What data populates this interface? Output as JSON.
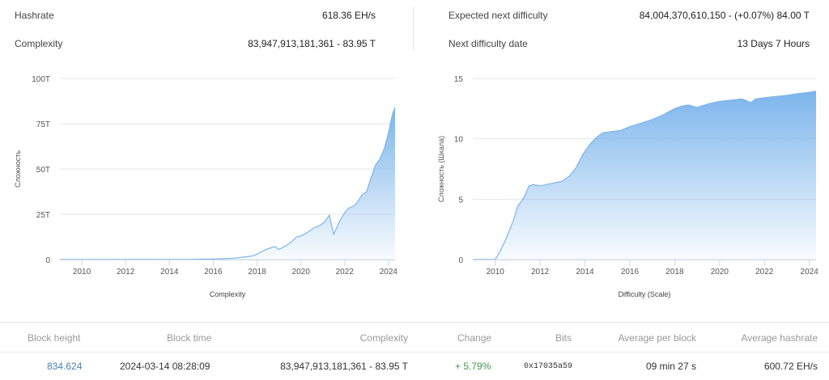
{
  "stats": {
    "hashrate": {
      "label": "Hashrate",
      "value": "618.36 EH/s"
    },
    "complexity": {
      "label": "Complexity",
      "value": "83,947,913,181,361 - 83.95 T"
    },
    "expected_next": {
      "label": "Expected next difficulty",
      "value": "84,004,370,610,150 - (+0.07%) 84.00 T"
    },
    "next_date": {
      "label": "Next difficulty date",
      "value": "13 Days 7 Hours"
    }
  },
  "colors": {
    "area_top": "#7cb5ec",
    "area_bottom": "#ffffff",
    "grid": "#e6e6e6",
    "link": "#4a7fb0",
    "positive": "#3c9a46"
  },
  "chart_data": [
    {
      "type": "area",
      "title": "",
      "xlabel": "Complexity",
      "ylabel": "Сложность",
      "xlim": [
        2009,
        2024.3
      ],
      "ylim": [
        0,
        100
      ],
      "x_ticks": [
        "2010",
        "2012",
        "2014",
        "2016",
        "2018",
        "2020",
        "2022",
        "2024"
      ],
      "y_ticks": [
        "0",
        "25T",
        "50T",
        "75T",
        "100T"
      ],
      "y_tick_values": [
        0,
        25,
        50,
        75,
        100
      ],
      "x_tick_values": [
        2010,
        2012,
        2014,
        2016,
        2018,
        2020,
        2022,
        2024
      ],
      "series": [
        {
          "x": [
            2009,
            2014,
            2015,
            2016,
            2016.5,
            2017,
            2017.5,
            2017.8,
            2018,
            2018.4,
            2018.8,
            2019.0,
            2019.3,
            2019.6,
            2019.8,
            2020.0,
            2020.3,
            2020.6,
            2020.9,
            2021.1,
            2021.3,
            2021.4,
            2021.5,
            2021.6,
            2021.8,
            2022.0,
            2022.2,
            2022.4,
            2022.6,
            2022.8,
            2023.0,
            2023.2,
            2023.4,
            2023.6,
            2023.8,
            2024.0,
            2024.15,
            2024.2,
            2024.3
          ],
          "values": [
            0,
            0.1,
            0.1,
            0.3,
            0.5,
            0.8,
            1.5,
            2.0,
            3.0,
            5.5,
            7.2,
            5.6,
            7.5,
            10.0,
            12.5,
            13.0,
            15.0,
            17.5,
            19.0,
            21.0,
            24.5,
            19.0,
            14.0,
            16.5,
            22.0,
            26.0,
            28.5,
            29.5,
            32.0,
            36.0,
            37.5,
            45.0,
            52.0,
            55.5,
            61.0,
            70.0,
            78.5,
            81.0,
            84.0
          ]
        }
      ]
    },
    {
      "type": "area",
      "title": "",
      "xlabel": "Difficulty (Scale)",
      "ylabel": "Сложность (Шкала)",
      "xlim": [
        2009,
        2024.3
      ],
      "ylim": [
        0,
        15
      ],
      "x_ticks": [
        "2010",
        "2012",
        "2014",
        "2016",
        "2018",
        "2020",
        "2022",
        "2024"
      ],
      "y_ticks": [
        "0",
        "5",
        "10",
        "15"
      ],
      "y_tick_values": [
        0,
        5,
        10,
        15
      ],
      "x_tick_values": [
        2010,
        2012,
        2014,
        2016,
        2018,
        2020,
        2022,
        2024
      ],
      "series": [
        {
          "x": [
            2009,
            2010.0,
            2010.2,
            2010.5,
            2010.8,
            2011.0,
            2011.3,
            2011.5,
            2011.7,
            2012.0,
            2012.5,
            2013.0,
            2013.3,
            2013.6,
            2013.9,
            2014.2,
            2014.5,
            2014.8,
            2015.2,
            2015.6,
            2016.0,
            2016.5,
            2017.0,
            2017.5,
            2018.0,
            2018.3,
            2018.6,
            2019.0,
            2019.5,
            2020.0,
            2020.5,
            2021.0,
            2021.4,
            2021.6,
            2022.0,
            2022.5,
            2023.0,
            2023.5,
            2024.0,
            2024.3
          ],
          "values": [
            0,
            0,
            0.6,
            1.8,
            3.2,
            4.4,
            5.2,
            6.1,
            6.2,
            6.1,
            6.3,
            6.5,
            6.9,
            7.6,
            8.7,
            9.5,
            10.1,
            10.5,
            10.6,
            10.7,
            11.0,
            11.3,
            11.6,
            12.0,
            12.5,
            12.7,
            12.8,
            12.6,
            12.9,
            13.1,
            13.2,
            13.3,
            13.0,
            13.3,
            13.4,
            13.5,
            13.6,
            13.75,
            13.85,
            13.95
          ]
        }
      ]
    }
  ],
  "table": {
    "headers": [
      "Block height",
      "Block time",
      "Complexity",
      "Change",
      "Bits",
      "Average per block",
      "Average hashrate"
    ],
    "row": {
      "block_height": "834.624",
      "block_time": "2024-03-14 08:28:09",
      "complexity": "83,947,913,181,361 - 83.95 T",
      "change": "+ 5.79%",
      "bits": "0x17035a59",
      "avg_block": "09 min 27 s",
      "avg_hashrate": "600.72 EH/s"
    }
  }
}
